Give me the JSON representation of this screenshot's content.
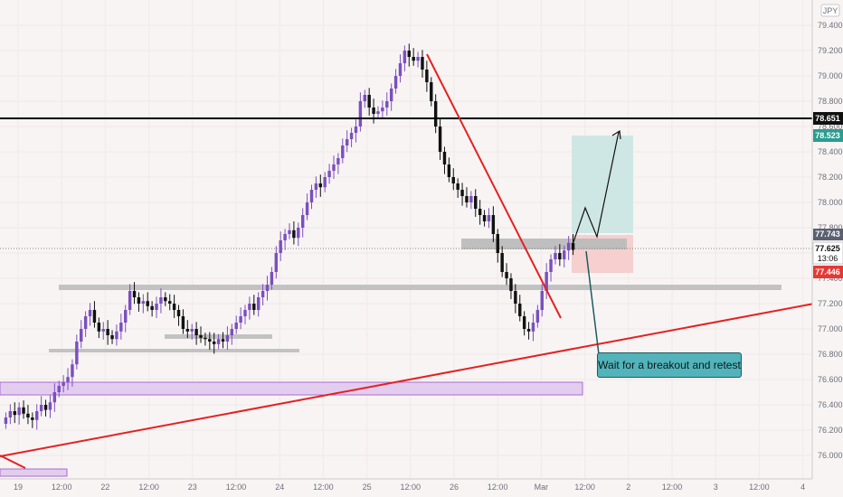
{
  "currency_badge": "JPY",
  "callout_text": "Wait for a breakout and retest",
  "price_tags": {
    "resistance": "78.651",
    "target": "78.523",
    "upper": "77.743",
    "last_price": "77.625",
    "countdown": "13:06",
    "stop": "77.446"
  },
  "colors": {
    "background": "#f8f4f4",
    "bull_candle": "#7b4fbf",
    "bear_candle": "#111111",
    "trendline": "#e52121",
    "resistance_line": "#000000",
    "target_zone": "#cfe7e4",
    "stop_zone": "#f6cfcf",
    "support_zone": "#c2c2c2",
    "demand_zone": "#e3cdef",
    "callout": "#53b3ba"
  },
  "chart_data": {
    "type": "candlestick",
    "price_range": [
      75.95,
      79.5
    ],
    "y_ticks": [
      "79.400",
      "79.200",
      "79.000",
      "78.800",
      "78.600",
      "78.400",
      "78.200",
      "78.000",
      "77.800",
      "77.600",
      "77.400",
      "77.200",
      "77.000",
      "76.800",
      "76.600",
      "76.400",
      "76.200",
      "76.000"
    ],
    "x_ticks": [
      "19",
      "12:00",
      "22",
      "12:00",
      "23",
      "12:00",
      "24",
      "12:00",
      "25",
      "12:00",
      "26",
      "12:00",
      "Mar",
      "12:00",
      "2",
      "12:00",
      "3",
      "12:00",
      "4"
    ],
    "horizontal_levels": [
      {
        "name": "resistance",
        "price": 78.651
      }
    ],
    "zones": [
      {
        "name": "long-target-zone",
        "from_price": 77.75,
        "to_price": 78.52
      },
      {
        "name": "long-stop-zone",
        "from_price": 77.45,
        "to_price": 77.75
      },
      {
        "name": "breakout-zone",
        "from_price": 77.64,
        "to_price": 77.72
      },
      {
        "name": "support-zone-mid",
        "from_price": 77.32,
        "to_price": 77.36
      },
      {
        "name": "support-zone-left",
        "from_price": 76.85,
        "to_price": 76.87
      },
      {
        "name": "support-zone-small",
        "from_price": 76.94,
        "to_price": 76.96
      },
      {
        "name": "demand-zone",
        "from_price": 76.54,
        "to_price": 76.65
      }
    ],
    "candles_close": [
      76.3,
      76.35,
      76.32,
      76.38,
      76.33,
      76.3,
      76.28,
      76.35,
      76.4,
      76.36,
      76.42,
      76.5,
      76.55,
      76.58,
      76.62,
      76.72,
      76.9,
      77.0,
      77.1,
      77.15,
      77.05,
      76.98,
      77.0,
      76.95,
      76.92,
      76.98,
      77.05,
      77.15,
      77.3,
      77.25,
      77.2,
      77.22,
      77.18,
      77.15,
      77.2,
      77.25,
      77.22,
      77.2,
      77.15,
      77.1,
      77.0,
      76.98,
      77.0,
      76.95,
      76.93,
      76.92,
      76.9,
      76.88,
      76.92,
      76.9,
      76.95,
      77.0,
      77.05,
      77.1,
      77.15,
      77.2,
      77.15,
      77.25,
      77.3,
      77.35,
      77.45,
      77.6,
      77.7,
      77.75,
      77.78,
      77.72,
      77.8,
      77.9,
      78.0,
      78.1,
      78.15,
      78.12,
      78.2,
      78.25,
      78.3,
      78.35,
      78.45,
      78.5,
      78.55,
      78.6,
      78.8,
      78.85,
      78.75,
      78.7,
      78.72,
      78.75,
      78.8,
      78.9,
      79.0,
      79.1,
      79.2,
      79.15,
      79.12,
      79.15,
      79.05,
      78.95,
      78.8,
      78.6,
      78.4,
      78.3,
      78.2,
      78.15,
      78.1,
      78.05,
      78.0,
      78.05,
      77.95,
      77.9,
      77.85,
      77.9,
      77.75,
      77.6,
      77.45,
      77.4,
      77.3,
      77.2,
      77.1,
      77.0,
      76.98,
      77.05,
      77.15,
      77.3,
      77.45,
      77.55,
      77.6,
      77.55,
      77.62,
      77.68,
      77.625
    ],
    "trendlines": [
      {
        "name": "falling-trendline",
        "from": {
          "x": "25 12:00",
          "price": 79.15
        },
        "to": {
          "x": "Mar",
          "price": 77.15
        }
      },
      {
        "name": "rising-trendline",
        "from": {
          "x": "19",
          "price": 76.0
        },
        "to": {
          "x": "4",
          "price": 77.22
        }
      }
    ]
  }
}
